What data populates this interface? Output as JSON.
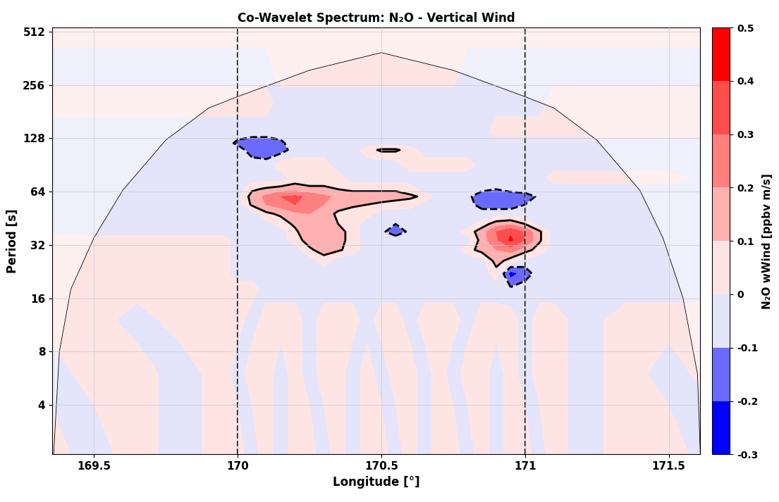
{
  "chart_data": {
    "type": "contour",
    "title": "Co-Wavelet Spectrum: N₂O - Vertical Wind",
    "x_label": "Longitude [°]",
    "y_label": "Period [s]",
    "colorbar_label": "N₂O wWind [ppbv m/s]",
    "log": "y",
    "grid": true,
    "xlim": [
      169.355,
      171.61
    ],
    "ylim": [
      2.1,
      540
    ],
    "xticks": [
      169.5,
      170,
      170.5,
      171,
      171.5
    ],
    "yticks": [
      4,
      8,
      16,
      32,
      64,
      128,
      256,
      512
    ],
    "colorbar_ticks": [
      -0.3,
      -0.2,
      -0.1,
      0,
      0.1,
      0.2,
      0.3,
      0.4,
      0.5
    ],
    "colors": [
      "#0000ff",
      "#6a6aff",
      "#e4e4fb",
      "#ffe4e4",
      "#ffb0b0",
      "#ff8080",
      "#ff4d4d",
      "#ff0000"
    ],
    "vlines": [
      170,
      171
    ],
    "coi_x": [
      169.36,
      169.38,
      169.42,
      169.5,
      169.6,
      169.75,
      169.9,
      170.0,
      170.25,
      170.5,
      170.75,
      171.0,
      171.1,
      171.25,
      171.4,
      171.48,
      171.55,
      171.6,
      171.61
    ],
    "coi_period": [
      2.1,
      8,
      18,
      35,
      65,
      125,
      190,
      220,
      310,
      390,
      310,
      220,
      190,
      125,
      65,
      35,
      16,
      6,
      2.1
    ],
    "x": [
      169.35,
      169.5,
      169.65,
      169.8,
      169.95,
      170.0,
      170.05,
      170.1,
      170.15,
      170.2,
      170.25,
      170.3,
      170.35,
      170.4,
      170.45,
      170.5,
      170.55,
      170.6,
      170.65,
      170.7,
      170.75,
      170.8,
      170.85,
      170.9,
      170.95,
      171.0,
      171.05,
      171.1,
      171.2,
      171.35,
      171.5,
      171.65
    ],
    "periods": [
      2,
      6,
      12,
      18,
      22,
      26,
      30,
      34,
      38,
      42,
      48,
      54,
      60,
      66,
      76,
      90,
      110,
      120,
      140,
      200,
      300,
      540
    ],
    "cells": [
      [
        0.05,
        -0.05,
        0.05,
        -0.05,
        0.05,
        0.05,
        -0.05,
        0.05,
        -0.05,
        0.05,
        0.05,
        -0.05,
        0.05,
        -0.05,
        0.05,
        0.05,
        -0.05,
        0.05,
        -0.05,
        0.05,
        0.05,
        -0.05,
        0.05,
        -0.05,
        0.05,
        0.05,
        -0.05,
        0.05,
        -0.05,
        0.05,
        0.05,
        -0.05
      ],
      [
        -0.05,
        0.05,
        0.05,
        -0.05,
        0.05,
        -0.05,
        0.05,
        0.05,
        -0.05,
        0.05,
        -0.05,
        0.05,
        0.05,
        -0.05,
        0.05,
        -0.05,
        0.05,
        0.05,
        -0.05,
        0.05,
        -0.05,
        0.05,
        0.05,
        -0.05,
        0.05,
        -0.05,
        0.05,
        0.05,
        -0.05,
        0.05,
        -0.05,
        0.05
      ],
      [
        0.05,
        0.05,
        -0.05,
        0.05,
        0.05,
        0.05,
        -0.05,
        0.05,
        0.05,
        0.05,
        -0.05,
        0.05,
        0.05,
        0.05,
        -0.05,
        0.05,
        0.05,
        -0.05,
        0.05,
        0.05,
        0.05,
        -0.05,
        0.05,
        0.05,
        0.05,
        -0.05,
        0.05,
        0.05,
        -0.05,
        0.05,
        0.05,
        0.05
      ],
      [
        0.05,
        0.05,
        0.05,
        0.05,
        0.05,
        0.05,
        0.05,
        -0.05,
        -0.05,
        -0.05,
        -0.05,
        -0.05,
        -0.05,
        -0.05,
        -0.05,
        -0.05,
        -0.05,
        -0.05,
        -0.05,
        -0.05,
        -0.05,
        -0.05,
        -0.05,
        -0.05,
        -0.08,
        -0.05,
        -0.05,
        -0.05,
        -0.05,
        -0.05,
        -0.05,
        -0.05
      ],
      [
        0.05,
        0.05,
        0.05,
        0.05,
        0.05,
        -0.05,
        -0.05,
        -0.05,
        -0.05,
        -0.05,
        -0.05,
        -0.05,
        -0.05,
        -0.05,
        -0.05,
        -0.05,
        -0.05,
        -0.05,
        -0.05,
        -0.05,
        -0.05,
        -0.05,
        -0.05,
        0.05,
        -0.25,
        -0.15,
        -0.05,
        -0.05,
        -0.05,
        -0.05,
        -0.05,
        -0.05
      ],
      [
        0.05,
        0.05,
        0.05,
        0.05,
        0.05,
        -0.05,
        -0.05,
        -0.05,
        -0.05,
        -0.05,
        -0.05,
        0.05,
        -0.05,
        -0.05,
        -0.05,
        -0.05,
        -0.05,
        -0.05,
        -0.05,
        -0.05,
        -0.05,
        -0.05,
        -0.05,
        0.15,
        0.05,
        -0.05,
        -0.05,
        -0.05,
        -0.05,
        -0.05,
        -0.05,
        -0.05
      ],
      [
        0.05,
        0.05,
        0.05,
        0.05,
        0.05,
        -0.05,
        -0.05,
        -0.05,
        -0.05,
        -0.05,
        0.08,
        0.15,
        0.12,
        0.05,
        -0.05,
        -0.05,
        -0.05,
        -0.05,
        -0.05,
        -0.05,
        -0.05,
        0.05,
        0.15,
        0.2,
        0.25,
        0.15,
        0.05,
        -0.05,
        -0.05,
        -0.05,
        -0.05,
        -0.05
      ],
      [
        0.05,
        0.05,
        0.05,
        0.05,
        0.05,
        -0.05,
        -0.05,
        -0.05,
        -0.05,
        0.05,
        0.15,
        0.18,
        0.15,
        0.05,
        -0.05,
        -0.05,
        -0.05,
        -0.05,
        -0.05,
        -0.05,
        -0.05,
        -0.05,
        0.15,
        0.28,
        0.42,
        0.3,
        0.12,
        -0.05,
        -0.05,
        -0.05,
        -0.05,
        -0.05
      ],
      [
        -0.05,
        -0.05,
        -0.05,
        -0.05,
        -0.05,
        -0.05,
        -0.05,
        -0.05,
        -0.05,
        0.08,
        0.18,
        0.2,
        0.15,
        0.05,
        -0.05,
        -0.08,
        -0.15,
        -0.08,
        -0.05,
        -0.05,
        -0.05,
        0.05,
        0.15,
        0.3,
        0.38,
        0.28,
        0.12,
        -0.05,
        -0.05,
        -0.05,
        -0.05,
        -0.05
      ],
      [
        -0.05,
        -0.05,
        -0.05,
        -0.05,
        -0.05,
        -0.05,
        -0.05,
        -0.05,
        0.05,
        0.12,
        0.2,
        0.18,
        0.1,
        0.05,
        -0.05,
        -0.05,
        -0.1,
        -0.05,
        -0.05,
        -0.05,
        -0.05,
        -0.05,
        0.05,
        0.15,
        0.18,
        0.1,
        -0.05,
        -0.05,
        -0.05,
        -0.05,
        -0.05,
        -0.05
      ],
      [
        -0.05,
        -0.05,
        -0.05,
        -0.05,
        -0.05,
        -0.05,
        -0.05,
        0.08,
        0.12,
        0.18,
        0.2,
        0.15,
        0.08,
        0.05,
        0.05,
        -0.05,
        -0.05,
        -0.05,
        -0.05,
        -0.05,
        -0.05,
        -0.05,
        -0.08,
        -0.05,
        -0.05,
        -0.05,
        -0.05,
        -0.05,
        -0.05,
        -0.05,
        -0.05,
        -0.05
      ],
      [
        -0.05,
        -0.05,
        -0.05,
        -0.05,
        -0.05,
        -0.05,
        0.12,
        0.2,
        0.25,
        0.3,
        0.28,
        0.2,
        0.15,
        0.12,
        0.1,
        0.08,
        0.05,
        0.05,
        -0.05,
        -0.05,
        -0.05,
        -0.08,
        -0.12,
        -0.15,
        -0.15,
        -0.1,
        -0.05,
        -0.05,
        -0.05,
        -0.05,
        -0.05,
        -0.05
      ],
      [
        -0.05,
        -0.05,
        -0.05,
        -0.05,
        -0.05,
        -0.05,
        0.15,
        0.22,
        0.3,
        0.32,
        0.28,
        0.22,
        0.18,
        0.15,
        0.15,
        0.15,
        0.15,
        0.12,
        0.08,
        -0.05,
        -0.05,
        -0.08,
        -0.15,
        -0.18,
        -0.18,
        -0.15,
        -0.08,
        -0.05,
        -0.05,
        -0.05,
        -0.05,
        -0.05
      ],
      [
        -0.05,
        -0.05,
        -0.05,
        -0.05,
        -0.05,
        -0.05,
        0.08,
        0.12,
        0.15,
        0.15,
        0.12,
        0.12,
        0.1,
        0.08,
        0.08,
        0.08,
        0.08,
        0.05,
        -0.05,
        -0.05,
        -0.05,
        -0.05,
        -0.08,
        -0.1,
        -0.05,
        -0.05,
        -0.05,
        -0.05,
        -0.05,
        -0.05,
        -0.05,
        -0.05
      ],
      [
        -0.05,
        -0.05,
        -0.05,
        -0.05,
        -0.05,
        -0.05,
        -0.05,
        -0.05,
        -0.05,
        0.05,
        0.05,
        0.05,
        0.05,
        -0.05,
        -0.05,
        -0.05,
        -0.05,
        -0.05,
        -0.05,
        -0.05,
        -0.05,
        -0.05,
        -0.05,
        -0.05,
        -0.05,
        -0.05,
        -0.05,
        0.05,
        0.05,
        0.05,
        0.05,
        -0.05
      ],
      [
        -0.05,
        -0.05,
        -0.05,
        -0.05,
        -0.05,
        -0.05,
        -0.05,
        -0.05,
        0.05,
        0.05,
        0.05,
        0.05,
        -0.05,
        -0.05,
        -0.05,
        -0.05,
        -0.05,
        0.05,
        0.05,
        0.05,
        0.05,
        0.05,
        -0.05,
        -0.05,
        -0.05,
        -0.05,
        -0.05,
        -0.05,
        -0.05,
        -0.05,
        -0.05,
        -0.05
      ],
      [
        -0.05,
        -0.05,
        -0.05,
        -0.05,
        -0.05,
        -0.05,
        -0.15,
        -0.18,
        -0.15,
        -0.05,
        -0.05,
        -0.05,
        -0.05,
        -0.05,
        0.05,
        0.12,
        0.12,
        0.05,
        -0.05,
        -0.05,
        -0.05,
        -0.05,
        -0.05,
        -0.05,
        -0.05,
        -0.05,
        -0.05,
        -0.05,
        -0.05,
        -0.05,
        -0.05,
        -0.05
      ],
      [
        -0.05,
        -0.05,
        -0.05,
        -0.05,
        -0.05,
        -0.12,
        -0.15,
        -0.15,
        -0.12,
        -0.05,
        -0.05,
        -0.05,
        -0.05,
        -0.05,
        -0.05,
        -0.05,
        -0.05,
        -0.05,
        -0.05,
        -0.05,
        -0.05,
        -0.05,
        -0.05,
        -0.05,
        -0.05,
        -0.05,
        -0.05,
        -0.05,
        -0.05,
        -0.05,
        -0.05,
        -0.05
      ],
      [
        -0.05,
        -0.05,
        -0.05,
        -0.05,
        -0.05,
        -0.05,
        -0.05,
        -0.05,
        -0.05,
        -0.05,
        -0.05,
        -0.05,
        -0.05,
        -0.05,
        -0.05,
        -0.05,
        -0.05,
        -0.05,
        -0.05,
        -0.05,
        -0.05,
        -0.05,
        -0.05,
        0.05,
        0.05,
        0.05,
        0.05,
        0.05,
        0.05,
        0.05,
        0.05,
        0.05
      ],
      [
        0.05,
        0.05,
        0.05,
        0.05,
        0.05,
        0.05,
        0.05,
        0.05,
        -0.05,
        -0.05,
        -0.05,
        -0.05,
        -0.05,
        -0.05,
        -0.05,
        -0.05,
        -0.05,
        -0.05,
        -0.05,
        -0.05,
        -0.05,
        -0.05,
        -0.05,
        -0.05,
        -0.05,
        -0.05,
        -0.05,
        0.05,
        0.05,
        0.05,
        0.05,
        0.05
      ],
      [
        -0.05,
        -0.05,
        -0.05,
        -0.05,
        -0.05,
        -0.05,
        -0.05,
        -0.05,
        0.05,
        0.05,
        0.05,
        0.05,
        0.05,
        0.05,
        0.05,
        0.05,
        0.05,
        0.05,
        0.05,
        0.05,
        0.05,
        -0.05,
        -0.05,
        -0.05,
        -0.05,
        -0.05,
        -0.05,
        -0.05,
        -0.05,
        -0.05,
        -0.05,
        -0.05
      ],
      [
        0.05,
        0.05,
        0.05,
        0.05,
        0.05,
        0.05,
        0.05,
        0.05,
        0.05,
        0.05,
        0.05,
        0.05,
        0.05,
        0.05,
        0.05,
        0.05,
        0.05,
        0.05,
        0.05,
        0.05,
        0.05,
        0.05,
        0.05,
        0.05,
        0.05,
        0.05,
        0.05,
        0.05,
        0.05,
        0.05,
        0.05,
        0.05
      ]
    ]
  }
}
